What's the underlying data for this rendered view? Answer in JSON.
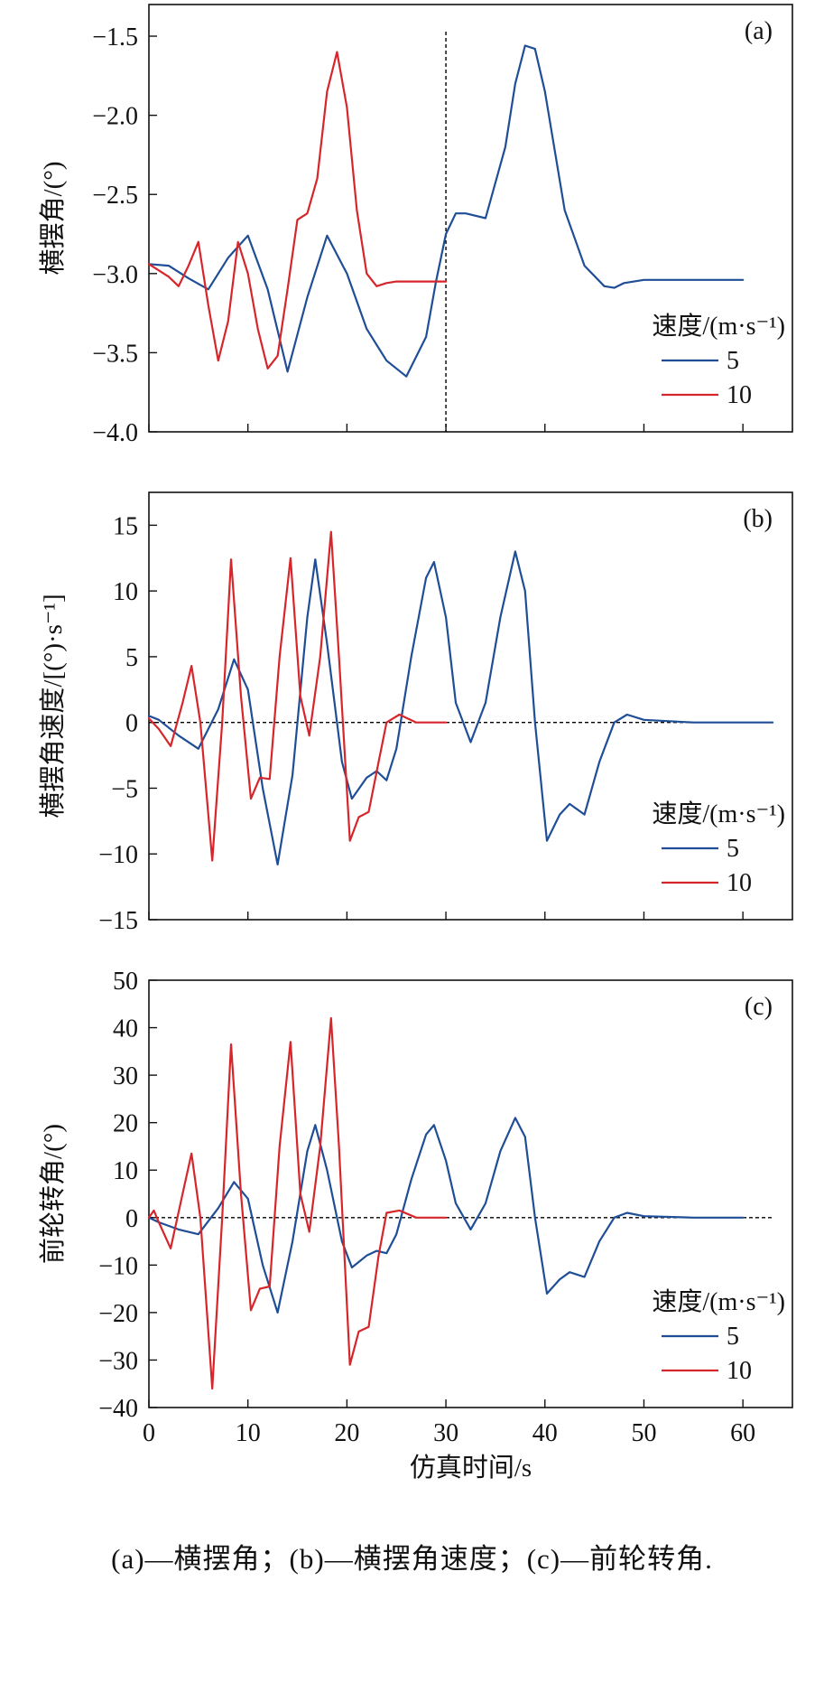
{
  "figure": {
    "caption": "(a)—横摆角；(b)—横摆角速度；(c)—前轮转角.",
    "shared_xlabel": "仿真时间/s",
    "colors": {
      "speed_5": "#1f4e96",
      "speed_10": "#d7262b",
      "axis": "#111111"
    }
  },
  "chart_data": [
    {
      "type": "line",
      "panel_label": "(a)",
      "ylabel": "横摆角/(°)",
      "xlim": [
        0,
        65
      ],
      "ylim": [
        -4.0,
        -1.3
      ],
      "xticks": [
        0,
        10,
        20,
        30,
        40,
        50,
        60
      ],
      "yticks": [
        -4.0,
        -3.5,
        -3.0,
        -2.5,
        -2.0,
        -1.5
      ],
      "ytick_labels": [
        "−4.0",
        "−3.5",
        "−3.0",
        "−2.5",
        "−2.0",
        "−1.5"
      ],
      "vline_x": 30,
      "legend": {
        "title": "速度/(m·s⁻¹)",
        "position": "right"
      },
      "series": [
        {
          "name": "5",
          "color": "#1f4e96",
          "x": [
            0,
            2,
            4,
            6,
            8,
            10,
            12,
            14,
            16,
            18,
            20,
            22,
            24,
            26,
            28,
            29,
            30,
            31,
            32,
            34,
            36,
            37,
            38,
            39,
            40,
            42,
            44,
            46,
            47,
            48,
            50,
            55,
            60
          ],
          "y": [
            -2.94,
            -2.95,
            -3.03,
            -3.1,
            -2.9,
            -2.76,
            -3.1,
            -3.62,
            -3.15,
            -2.76,
            -3.0,
            -3.35,
            -3.55,
            -3.65,
            -3.4,
            -3.05,
            -2.75,
            -2.62,
            -2.62,
            -2.65,
            -2.2,
            -1.8,
            -1.56,
            -1.58,
            -1.85,
            -2.6,
            -2.95,
            -3.08,
            -3.09,
            -3.06,
            -3.04,
            -3.04,
            -3.04
          ]
        },
        {
          "name": "10",
          "color": "#d7262b",
          "x": [
            0,
            2,
            3,
            4,
            5,
            6,
            7,
            8,
            9,
            10,
            11,
            12,
            13,
            14,
            15,
            16,
            17,
            18,
            19,
            20,
            21,
            22,
            23,
            24,
            25,
            27,
            29,
            30
          ],
          "y": [
            -2.94,
            -3.02,
            -3.08,
            -2.95,
            -2.8,
            -3.2,
            -3.55,
            -3.3,
            -2.8,
            -3.0,
            -3.35,
            -3.6,
            -3.52,
            -3.1,
            -2.66,
            -2.62,
            -2.4,
            -1.85,
            -1.6,
            -1.95,
            -2.6,
            -3.0,
            -3.08,
            -3.06,
            -3.05,
            -3.05,
            -3.05,
            -3.05
          ]
        }
      ]
    },
    {
      "type": "line",
      "panel_label": "(b)",
      "ylabel": "横摆角速度/[(°)·s⁻¹]",
      "xlim": [
        0,
        65
      ],
      "ylim": [
        -15,
        17.5
      ],
      "xticks": [
        0,
        10,
        20,
        30,
        40,
        50,
        60
      ],
      "yticks": [
        -15,
        -10,
        -5,
        0,
        5,
        10,
        15
      ],
      "ytick_labels": [
        "−15",
        "−10",
        "−5",
        "0",
        "5",
        "10",
        "15"
      ],
      "zero_line": true,
      "legend": {
        "title": "速度/(m·s⁻¹)",
        "position": "right"
      },
      "series": [
        {
          "name": "5",
          "color": "#1f4e96",
          "x": [
            0,
            1,
            3,
            5,
            7,
            8.6,
            10,
            11.5,
            13,
            14.5,
            16,
            16.8,
            18,
            19.5,
            20.5,
            22,
            23,
            24,
            25,
            26.5,
            28,
            28.8,
            30,
            31,
            32.5,
            34,
            35.5,
            37,
            38,
            39,
            40.2,
            41.5,
            42.5,
            44,
            45.5,
            47,
            48.3,
            50,
            55,
            60,
            63
          ],
          "y": [
            0.5,
            0.2,
            -1.0,
            -2.0,
            1.0,
            4.8,
            2.5,
            -5.0,
            -10.8,
            -4.0,
            8.0,
            12.4,
            6.0,
            -3.0,
            -5.8,
            -4.2,
            -3.7,
            -4.4,
            -2.0,
            5.0,
            11.0,
            12.2,
            8.0,
            1.5,
            -1.5,
            1.5,
            8.0,
            13.0,
            10.0,
            0.0,
            -9.0,
            -7.0,
            -6.2,
            -7.0,
            -3.0,
            0.0,
            0.6,
            0.2,
            0.0,
            0.0,
            0.0
          ]
        },
        {
          "name": "10",
          "color": "#d7262b",
          "x": [
            0,
            1,
            2.2,
            3.4,
            4.3,
            5.2,
            6.4,
            7.4,
            8.3,
            9.3,
            10.3,
            11.2,
            12.2,
            13.2,
            14.3,
            15.3,
            16.2,
            17.3,
            18.4,
            19.2,
            20.3,
            21.2,
            22.2,
            23.2,
            24,
            25.3,
            27,
            29,
            30
          ],
          "y": [
            0.3,
            -0.5,
            -1.8,
            1.5,
            4.3,
            0.0,
            -10.5,
            0.0,
            12.4,
            2.0,
            -5.8,
            -4.2,
            -4.3,
            5.0,
            12.5,
            2.0,
            -1.0,
            5.0,
            14.5,
            5.0,
            -9.0,
            -7.2,
            -6.8,
            -3.0,
            0.0,
            0.6,
            0.0,
            0.0,
            0.0
          ]
        }
      ]
    },
    {
      "type": "line",
      "panel_label": "(c)",
      "ylabel": "前轮转角/(°)",
      "xlabel": "仿真时间/s",
      "xlim": [
        0,
        65
      ],
      "ylim": [
        -40,
        50
      ],
      "xticks": [
        0,
        10,
        20,
        30,
        40,
        50,
        60
      ],
      "yticks": [
        -40,
        -30,
        -20,
        -10,
        0,
        10,
        20,
        30,
        40,
        50
      ],
      "ytick_labels": [
        "−40",
        "−30",
        "−20",
        "−10",
        "0",
        "10",
        "20",
        "30",
        "40",
        "50"
      ],
      "zero_line": true,
      "legend": {
        "title": "速度/(m·s⁻¹)",
        "position": "right"
      },
      "series": [
        {
          "name": "5",
          "color": "#1f4e96",
          "x": [
            0,
            1,
            3,
            5,
            7,
            8.6,
            10,
            11.5,
            13,
            14.5,
            16,
            16.8,
            18,
            19.5,
            20.5,
            22,
            23,
            24,
            25,
            26.5,
            28,
            28.8,
            30,
            31,
            32.5,
            34,
            35.5,
            37,
            38,
            39,
            40.2,
            41.5,
            42.5,
            44,
            45.5,
            47,
            48.3,
            50,
            55,
            60
          ],
          "y": [
            0,
            -1.0,
            -2.5,
            -3.5,
            2.0,
            7.5,
            4.0,
            -10.0,
            -20.0,
            -5.0,
            14.0,
            19.5,
            10.0,
            -5.0,
            -10.5,
            -8.0,
            -7.0,
            -7.5,
            -3.5,
            8.0,
            17.5,
            19.5,
            12.0,
            3.0,
            -2.5,
            3.0,
            14.0,
            21.0,
            17.0,
            0.0,
            -16.0,
            -13.0,
            -11.5,
            -12.5,
            -5.0,
            0.0,
            1.0,
            0.3,
            0.0,
            0.0
          ]
        },
        {
          "name": "10",
          "color": "#d7262b",
          "x": [
            0,
            0.5,
            1,
            2.2,
            3.4,
            4.3,
            5.2,
            6.4,
            7.4,
            8.3,
            9.3,
            10.3,
            11.2,
            12.2,
            13.2,
            14.3,
            15.3,
            16.2,
            17.3,
            18.4,
            19.2,
            20.3,
            21.2,
            22.2,
            23.2,
            24,
            25.3,
            27,
            29,
            30
          ],
          "y": [
            0,
            1.5,
            -1.0,
            -6.5,
            5.0,
            13.5,
            0.0,
            -36.0,
            0.0,
            36.5,
            5.0,
            -19.5,
            -15.0,
            -14.5,
            15.0,
            37.0,
            5.0,
            -3.0,
            15.0,
            42.0,
            15.0,
            -31.0,
            -24.0,
            -23.0,
            -8.0,
            1.0,
            1.5,
            0.0,
            0.0,
            0.0
          ]
        }
      ]
    }
  ]
}
